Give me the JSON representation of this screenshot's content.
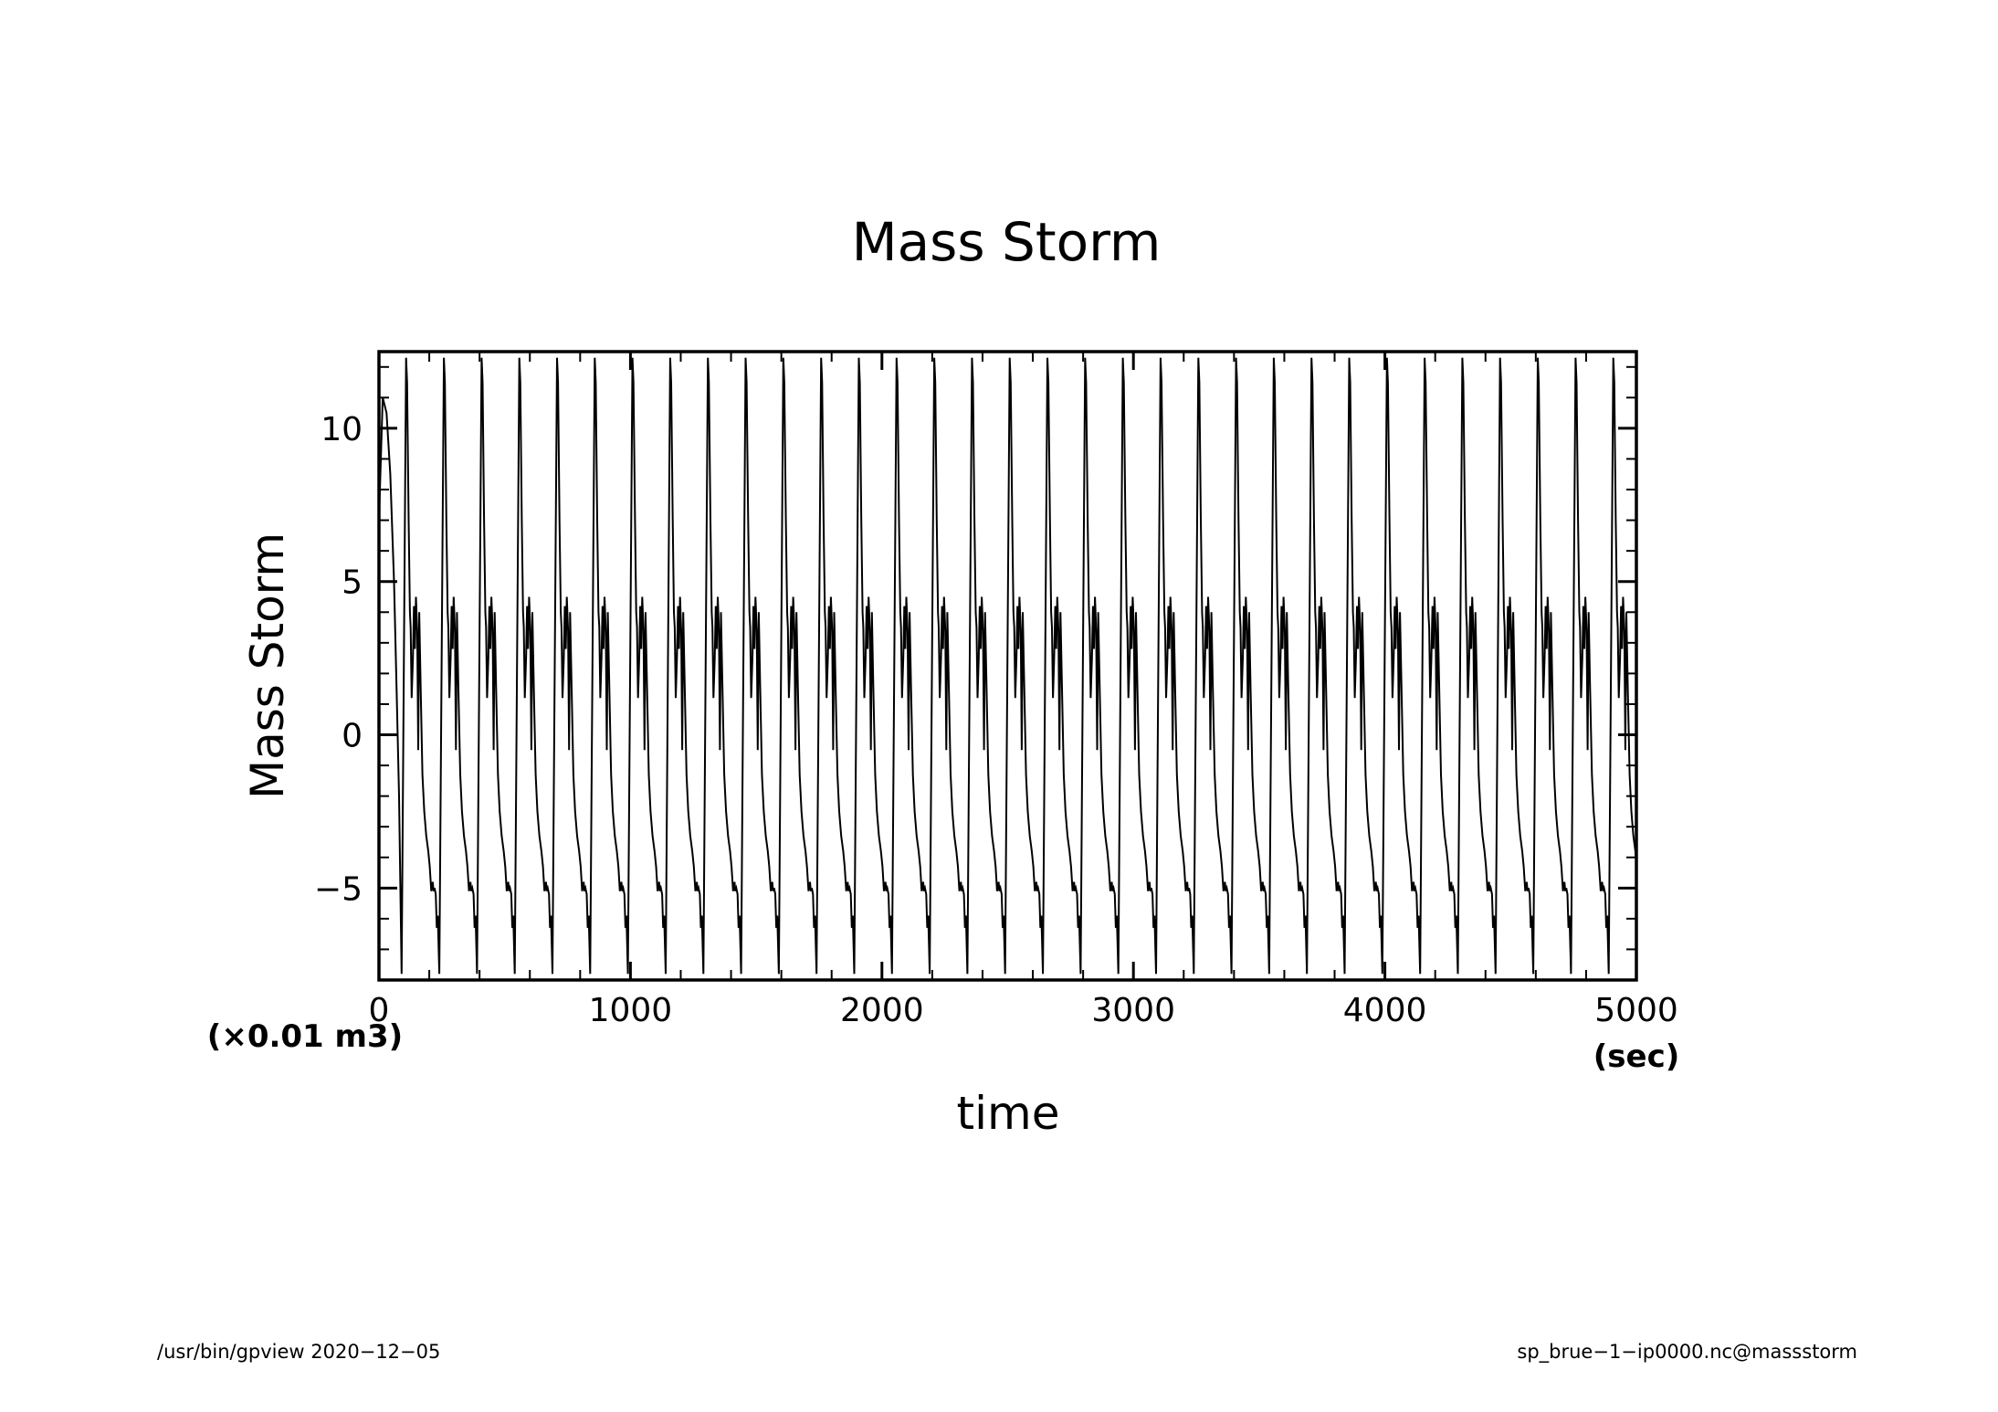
{
  "chart_data": {
    "type": "line",
    "title": "Mass Storm",
    "xlabel": "time",
    "x_unit": "(sec)",
    "ylabel": "Mass Storm",
    "y_unit": "(×0.01 m3)",
    "xlim": [
      0,
      5000
    ],
    "ylim": [
      -8,
      12.5
    ],
    "x_ticks": [
      "0",
      "1000",
      "2000",
      "3000",
      "4000",
      "5000"
    ],
    "y_ticks": [
      "10",
      "5",
      "0",
      "−5"
    ],
    "x_tick_values": [
      0,
      1000,
      2000,
      3000,
      4000,
      5000
    ],
    "y_tick_values": [
      10,
      5,
      0,
      -5
    ],
    "series": [
      {
        "period": 150,
        "cycle_start": 90,
        "cycle_shape": {
          "t": [
            0,
            18,
            22,
            28,
            33,
            36,
            40,
            45,
            49,
            53,
            57,
            62,
            66,
            70,
            76,
            83,
            90,
            98,
            106,
            112,
            118,
            124,
            127,
            131,
            136,
            140,
            144,
            150
          ],
          "v": [
            -7.8,
            12.3,
            11.5,
            7.0,
            4.0,
            3.5,
            1.2,
            2.5,
            4.2,
            2.8,
            4.5,
            3.4,
            -0.5,
            4.0,
            1.5,
            -1.3,
            -2.5,
            -3.3,
            -3.8,
            -4.3,
            -5.1,
            -4.8,
            -5.1,
            -5.0,
            -5.2,
            -6.3,
            -5.9,
            -7.8
          ]
        },
        "start_segment": {
          "x": [
            0,
            15,
            30,
            45,
            60,
            70,
            80,
            90
          ],
          "y": [
            7.0,
            11.0,
            10.5,
            8.5,
            5.0,
            1.5,
            -2.0,
            -7.8
          ]
        }
      }
    ]
  },
  "footer": {
    "left": "/usr/bin/gpview   2020−12−05",
    "right": "sp_brue−1−ip0000.nc@massstorm"
  }
}
